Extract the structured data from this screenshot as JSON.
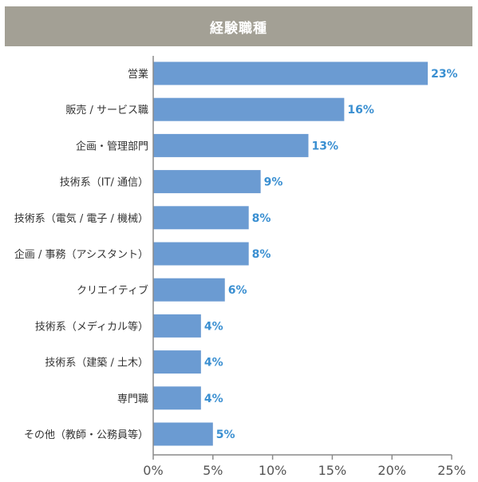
{
  "chart_data": {
    "type": "bar",
    "orientation": "horizontal",
    "title": "経験職種",
    "categories": [
      "営業",
      "販売 / サービス職",
      "企画・管理部門",
      "技術系（IT/ 通信）",
      "技術系（電気 / 電子 / 機械）",
      "企画 / 事務（アシスタント）",
      "クリエイティブ",
      "技術系（メディカル等）",
      "技術系（建築 / 土木）",
      "専門職",
      "その他（教師・公務員等）"
    ],
    "values": [
      23,
      16,
      13,
      9,
      8,
      8,
      6,
      4,
      4,
      4,
      5
    ],
    "value_labels": [
      "23%",
      "16%",
      "13%",
      "9%",
      "8%",
      "8%",
      "6%",
      "4%",
      "4%",
      "4%",
      "5%"
    ],
    "xlim": [
      0,
      25
    ],
    "xticks": [
      0,
      5,
      10,
      15,
      20,
      25
    ],
    "xtick_labels": [
      "0%",
      "5%",
      "10%",
      "15%",
      "20%",
      "25%"
    ],
    "xlabel": "",
    "ylabel": "",
    "bar_color": "#6b9bd2",
    "value_label_color": "#3a8fd1",
    "title_bg_color": "#a3a095",
    "grid": false
  }
}
